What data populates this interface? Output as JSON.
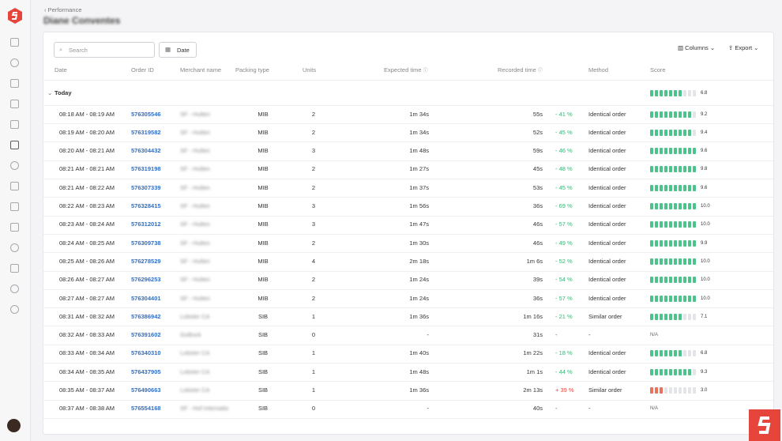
{
  "breadcrumb": "Performance",
  "title": "Diane Conventes",
  "toolbar": {
    "search_placeholder": "Search",
    "date": "Date",
    "columns": "Columns",
    "export": "Export"
  },
  "table": {
    "columns": [
      "Date",
      "Order ID",
      "Merchant name",
      "Packing type",
      "Units",
      "Expected time",
      "Recorded time",
      "Method",
      "Score"
    ],
    "group": {
      "label": "Today",
      "score": "6.8"
    },
    "rows": [
      {
        "date": "08:18 AM - 08:19 AM",
        "order": "576305546",
        "merchant": "SF - Hulten",
        "packing": "MIB",
        "units": "2",
        "expected": "1m 34s",
        "recorded": "55s",
        "diff": "- 41 %",
        "method": "Identical order",
        "score": "9.2"
      },
      {
        "date": "08:19 AM - 08:20 AM",
        "order": "576319582",
        "merchant": "SF - Hulten",
        "packing": "MIB",
        "units": "2",
        "expected": "1m 34s",
        "recorded": "52s",
        "diff": "- 45 %",
        "method": "Identical order",
        "score": "9.4"
      },
      {
        "date": "08:20 AM - 08:21 AM",
        "order": "576304432",
        "merchant": "SF - Hulten",
        "packing": "MIB",
        "units": "3",
        "expected": "1m 48s",
        "recorded": "59s",
        "diff": "- 46 %",
        "method": "Identical order",
        "score": "9.6"
      },
      {
        "date": "08:21 AM - 08:21 AM",
        "order": "576319198",
        "merchant": "SF - Hulten",
        "packing": "MIB",
        "units": "2",
        "expected": "1m 27s",
        "recorded": "45s",
        "diff": "- 48 %",
        "method": "Identical order",
        "score": "9.8"
      },
      {
        "date": "08:21 AM - 08:22 AM",
        "order": "576307339",
        "merchant": "SF - Hulten",
        "packing": "MIB",
        "units": "2",
        "expected": "1m 37s",
        "recorded": "53s",
        "diff": "- 45 %",
        "method": "Identical order",
        "score": "9.6"
      },
      {
        "date": "08:22 AM - 08:23 AM",
        "order": "576328415",
        "merchant": "SF - Hulten",
        "packing": "MIB",
        "units": "3",
        "expected": "1m 56s",
        "recorded": "36s",
        "diff": "- 69 %",
        "method": "Identical order",
        "score": "10.0"
      },
      {
        "date": "08:23 AM - 08:24 AM",
        "order": "576312012",
        "merchant": "SF - Hulten",
        "packing": "MIB",
        "units": "3",
        "expected": "1m 47s",
        "recorded": "46s",
        "diff": "- 57 %",
        "method": "Identical order",
        "score": "10.0"
      },
      {
        "date": "08:24 AM - 08:25 AM",
        "order": "576309738",
        "merchant": "SF - Hulten",
        "packing": "MIB",
        "units": "2",
        "expected": "1m 30s",
        "recorded": "46s",
        "diff": "- 49 %",
        "method": "Identical order",
        "score": "9.9"
      },
      {
        "date": "08:25 AM - 08:26 AM",
        "order": "576278529",
        "merchant": "SF - Hulten",
        "packing": "MIB",
        "units": "4",
        "expected": "2m 18s",
        "recorded": "1m 6s",
        "diff": "- 52 %",
        "method": "Identical order",
        "score": "10.0"
      },
      {
        "date": "08:26 AM - 08:27 AM",
        "order": "576296253",
        "merchant": "SF - Hulten",
        "packing": "MIB",
        "units": "2",
        "expected": "1m 24s",
        "recorded": "39s",
        "diff": "- 54 %",
        "method": "Identical order",
        "score": "10.0"
      },
      {
        "date": "08:27 AM - 08:27 AM",
        "order": "576304401",
        "merchant": "SF - Hulten",
        "packing": "MIB",
        "units": "2",
        "expected": "1m 24s",
        "recorded": "36s",
        "diff": "- 57 %",
        "method": "Identical order",
        "score": "10.0"
      },
      {
        "date": "08:31 AM - 08:32 AM",
        "order": "576386942",
        "merchant": "Lobster CA",
        "packing": "SIB",
        "units": "1",
        "expected": "1m 36s",
        "recorded": "1m 16s",
        "diff": "- 21 %",
        "method": "Similar order",
        "score": "7.1"
      },
      {
        "date": "08:32 AM - 08:33 AM",
        "order": "576391602",
        "merchant": "GoBuck",
        "packing": "SIB",
        "units": "0",
        "expected": "-",
        "recorded": "31s",
        "diff": "-",
        "method": "-",
        "score": "N/A"
      },
      {
        "date": "08:33 AM - 08:34 AM",
        "order": "576340310",
        "merchant": "Lobster CA",
        "packing": "SIB",
        "units": "1",
        "expected": "1m 40s",
        "recorded": "1m 22s",
        "diff": "- 18 %",
        "method": "Identical order",
        "score": "6.8"
      },
      {
        "date": "08:34 AM - 08:35 AM",
        "order": "576437905",
        "merchant": "Lobster CA",
        "packing": "SIB",
        "units": "1",
        "expected": "1m 48s",
        "recorded": "1m 1s",
        "diff": "- 44 %",
        "method": "Identical order",
        "score": "9.3"
      },
      {
        "date": "08:35 AM - 08:37 AM",
        "order": "576490663",
        "merchant": "Lobster CA",
        "packing": "SIB",
        "units": "1",
        "expected": "1m 36s",
        "recorded": "2m 13s",
        "diff": "+ 39 %",
        "method": "Similar order",
        "score": "3.0"
      },
      {
        "date": "08:37 AM - 08:38 AM",
        "order": "576554168",
        "merchant": "SF - Hof Internatio",
        "packing": "SIB",
        "units": "0",
        "expected": "-",
        "recorded": "40s",
        "diff": "-",
        "method": "-",
        "score": "N/A"
      }
    ]
  }
}
